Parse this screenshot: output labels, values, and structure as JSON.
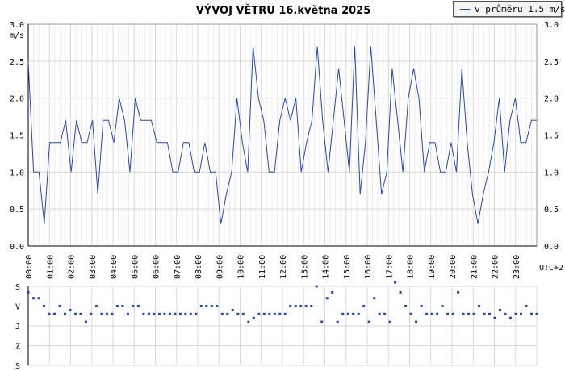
{
  "title": "VÝVOJ VĚTRU  16.května 2025",
  "legend": {
    "label": "v průměru 1.5 m/s",
    "color": "#2a4aa0"
  },
  "colors": {
    "line": "#2a4aa0",
    "points": "#2a4aa0",
    "grid": "#d8d8d8",
    "axis": "#000000"
  },
  "chart_data": [
    {
      "type": "line",
      "ylabel": "m/s",
      "ylim": [
        0,
        3
      ],
      "yticks": [
        "0.0",
        "0.5",
        "1.0",
        "1.5",
        "2.0",
        "2.5",
        "3.0"
      ],
      "xticks": [
        "00:00",
        "01:00",
        "02:00",
        "03:00",
        "04:00",
        "05:00",
        "06:00",
        "07:00",
        "08:00",
        "09:00",
        "10:00",
        "11:00",
        "12:00",
        "13:00",
        "14:00",
        "15:00",
        "16:00",
        "17:00",
        "18:00",
        "19:00",
        "20:00",
        "21:00",
        "22:00",
        "23:00"
      ],
      "xlabel": "UTC+2",
      "xlim": [
        0,
        24
      ],
      "grid": true,
      "legend_position": "top-right",
      "series": [
        {
          "name": "v průměru 1.5 m/s",
          "values": [
            2.5,
            1.0,
            1.0,
            0.3,
            1.4,
            1.4,
            1.4,
            1.7,
            1.0,
            1.7,
            1.4,
            1.4,
            1.7,
            0.7,
            1.7,
            1.7,
            1.4,
            2.0,
            1.7,
            1.0,
            2.0,
            1.7,
            1.7,
            1.7,
            1.4,
            1.4,
            1.4,
            1.0,
            1.0,
            1.4,
            1.4,
            1.0,
            1.0,
            1.4,
            1.0,
            1.0,
            0.3,
            0.7,
            1.0,
            2.0,
            1.4,
            1.0,
            2.7,
            2.0,
            1.7,
            1.0,
            1.0,
            1.7,
            2.0,
            1.7,
            2.0,
            1.0,
            1.4,
            1.7,
            2.7,
            1.7,
            1.0,
            1.7,
            2.4,
            1.7,
            1.0,
            2.7,
            0.7,
            1.4,
            2.7,
            1.7,
            0.7,
            1.0,
            2.4,
            1.7,
            1.0,
            2.0,
            2.4,
            2.0,
            1.0,
            1.4,
            1.4,
            1.0,
            1.0,
            1.4,
            1.0,
            2.4,
            1.4,
            0.7,
            0.3,
            0.7,
            1.0,
            1.4,
            2.0,
            1.0,
            1.7,
            2.0,
            1.4,
            1.4,
            1.7,
            1.7
          ]
        }
      ]
    },
    {
      "type": "scatter",
      "yticks": [
        "S",
        "V",
        "J",
        "Z",
        "S"
      ],
      "xlim": [
        0,
        24
      ],
      "grid": true,
      "series": [
        {
          "values": [
            3.7,
            3.4,
            3.4,
            3.0,
            2.6,
            2.6,
            3.0,
            2.6,
            2.8,
            2.6,
            2.6,
            2.2,
            2.6,
            3.0,
            2.6,
            2.6,
            2.6,
            3.0,
            3.0,
            2.6,
            3.0,
            3.0,
            2.6,
            2.6,
            2.6,
            2.6,
            2.6,
            2.6,
            2.6,
            2.6,
            2.6,
            2.6,
            2.6,
            3.0,
            3.0,
            3.0,
            3.0,
            2.6,
            2.6,
            2.8,
            2.6,
            2.6,
            2.2,
            2.4,
            2.6,
            2.6,
            2.6,
            2.6,
            2.6,
            2.6,
            3.0,
            3.0,
            3.0,
            3.0,
            3.0,
            4.0,
            2.2,
            3.4,
            3.7,
            2.2,
            2.6,
            2.6,
            2.6,
            2.6,
            3.0,
            2.2,
            3.4,
            2.6,
            2.6,
            2.2,
            4.2,
            3.7,
            3.0,
            2.6,
            2.2,
            3.0,
            2.6,
            2.6,
            2.6,
            3.0,
            2.6,
            2.6,
            3.7,
            2.6,
            2.6,
            2.6,
            3.0,
            2.6,
            2.6,
            2.4,
            2.8,
            2.6,
            2.4,
            2.6,
            2.6,
            3.0,
            2.6,
            2.6
          ]
        }
      ]
    }
  ]
}
